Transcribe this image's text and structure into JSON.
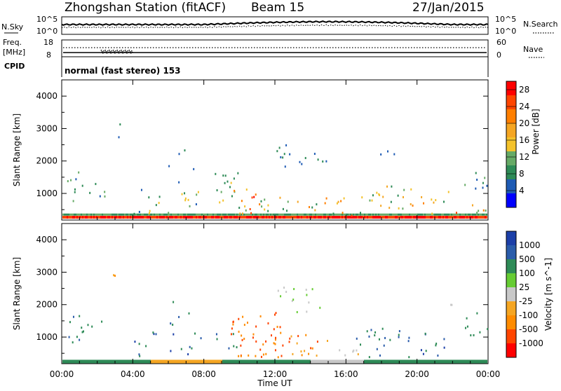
{
  "title": {
    "station": "Zhongshan Station (fitACF)",
    "beam": "Beam 15",
    "date": "27/Jan/2015"
  },
  "header_panels": {
    "nsky_label": "N.Sky",
    "nsky_ticks": [
      "10^5",
      "10^0"
    ],
    "nsearch_label": "N.Search",
    "nsearch_ticks": [
      "10^5",
      "10^0"
    ],
    "freq_label": "Freq.",
    "freq_unit": "[MHz]",
    "freq_ticks": [
      "18",
      "8"
    ],
    "nave_label": "Nave",
    "nave_ticks": [
      "60",
      "0"
    ],
    "cpid_label": "CPID",
    "cpid_text": "normal (fast stereo) 153"
  },
  "x_axis": {
    "label": "Time UT",
    "ticks": [
      "00:00",
      "04:00",
      "08:00",
      "12:00",
      "16:00",
      "20:00",
      "00:00"
    ]
  },
  "colors": {
    "power": [
      "#0000ff",
      "#1e5bb4",
      "#2e8b57",
      "#66aa66",
      "#f4c22b",
      "#f5a623",
      "#ff7f00",
      "#ff4500",
      "#ff0000"
    ],
    "velocity": [
      "#ff0000",
      "#ff4500",
      "#ff8c00",
      "#f5a623",
      "#c8c8c8",
      "#66cc33",
      "#2e8b57",
      "#2a5caa",
      "#1c3fa8"
    ]
  },
  "chart_data": [
    {
      "type": "heatmap",
      "title": "",
      "xlabel": "",
      "ylabel": "Slant Range [km]",
      "xlim": [
        0,
        24
      ],
      "ylim": [
        180,
        4500
      ],
      "y_ticks": [
        "1000",
        "2000",
        "3000",
        "4000"
      ],
      "colorbar": {
        "label": "Power [dB]",
        "ticks": [
          "4",
          "8",
          "12",
          "16",
          "20",
          "24",
          "28"
        ],
        "range": [
          0,
          30
        ]
      },
      "series": [
        {
          "name": "",
          "x": 0.0,
          "y": 300,
          "value": 28
        },
        {
          "name": "",
          "x": 0.5,
          "y": 1300,
          "value": 9
        },
        {
          "name": "",
          "x": 1.5,
          "y": 1200,
          "value": 10
        },
        {
          "name": "",
          "x": 3.0,
          "y": 2900,
          "value": 6
        },
        {
          "name": "",
          "x": 6.0,
          "y": 600,
          "value": 12
        },
        {
          "name": "",
          "x": 10.0,
          "y": 700,
          "value": 24
        },
        {
          "name": "",
          "x": 12.5,
          "y": 2300,
          "value": 8
        },
        {
          "name": "",
          "x": 14.5,
          "y": 2200,
          "value": 7
        },
        {
          "name": "",
          "x": 16.0,
          "y": 350,
          "value": 22
        },
        {
          "name": "",
          "x": 23.5,
          "y": 1300,
          "value": 8
        }
      ]
    },
    {
      "type": "heatmap",
      "title": "",
      "xlabel": "Time UT",
      "ylabel": "Slant Range [km]",
      "xlim": [
        0,
        24
      ],
      "ylim": [
        180,
        4500
      ],
      "y_ticks": [
        "1000",
        "2000",
        "3000",
        "4000"
      ],
      "colorbar": {
        "label": "Velocity [m s^-1]",
        "ticks": [
          "-1000",
          "-500",
          "-100",
          "-25",
          "25",
          "100",
          "500",
          "1000"
        ],
        "range": [
          -1000,
          1000
        ]
      },
      "series": [
        {
          "name": "",
          "x": 0.0,
          "y": 300,
          "value": 100
        },
        {
          "name": "",
          "x": 6.0,
          "y": 280,
          "value": -100
        },
        {
          "name": "",
          "x": 11.0,
          "y": 900,
          "value": -500
        },
        {
          "name": "",
          "x": 13.0,
          "y": 700,
          "value": -500
        },
        {
          "name": "",
          "x": 14.0,
          "y": 2200,
          "value": 0
        },
        {
          "name": "",
          "x": 20.0,
          "y": 1300,
          "value": 100
        },
        {
          "name": "",
          "x": 21.5,
          "y": 2100,
          "value": 0
        }
      ]
    }
  ]
}
